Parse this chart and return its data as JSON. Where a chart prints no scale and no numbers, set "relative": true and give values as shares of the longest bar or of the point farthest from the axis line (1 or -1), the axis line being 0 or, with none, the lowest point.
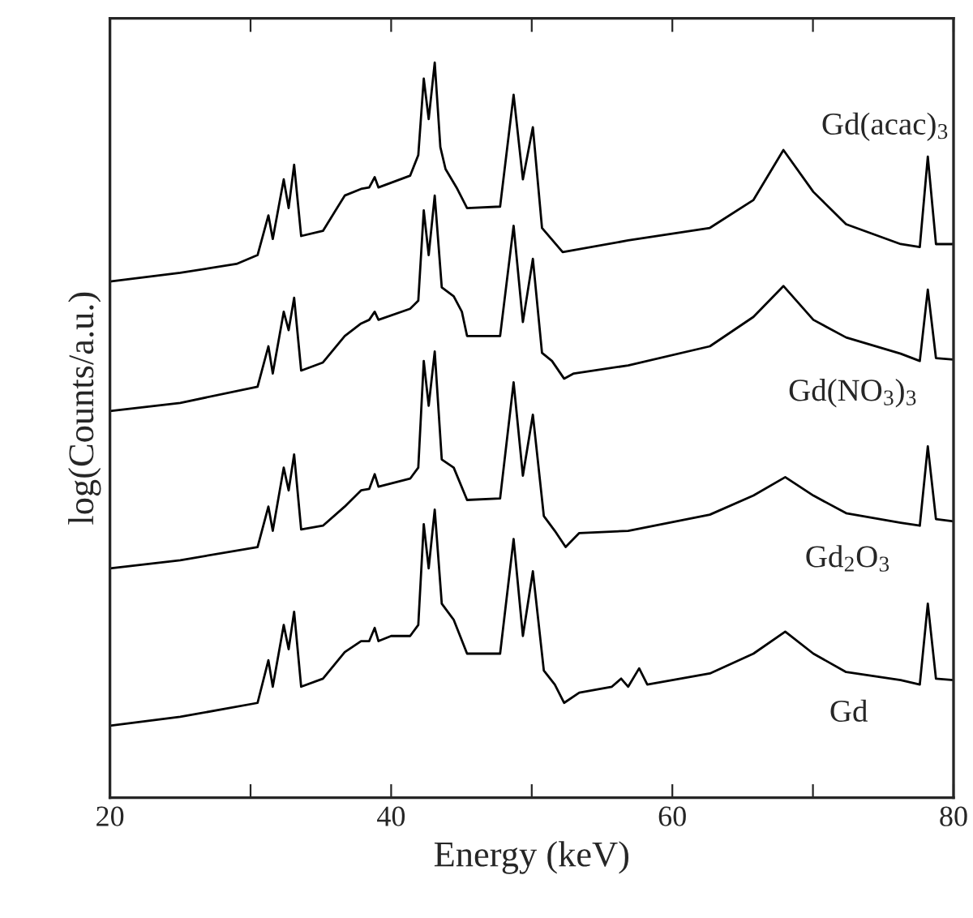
{
  "chart_data": {
    "type": "line",
    "relative": true,
    "xlabel": "Energy (keV)",
    "ylabel": "log(Counts/a.u.)",
    "xlim": [
      20,
      80
    ],
    "xticks": [
      20,
      {
        "value": 30,
        "label": null
      },
      40,
      {
        "value": 50,
        "label": null
      },
      60,
      {
        "value": 70,
        "label": null
      },
      80
    ],
    "series": [
      {
        "name": "Gd(acac)$_{3}$",
        "color": "#000000",
        "x": [
          20,
          25,
          29,
          30.5,
          31.27,
          31.58,
          32.36,
          32.71,
          33.1,
          33.6,
          35.15,
          36.7,
          37.86,
          38.44,
          38.83,
          39.1,
          41.35,
          41.93,
          42.32,
          42.67,
          43.1,
          43.5,
          43.87,
          44.65,
          45.4,
          47.75,
          48.71,
          49.37,
          50.08,
          50.73,
          52.2,
          56.86,
          62.67,
          65.77,
          67.9,
          70.03,
          72.36,
          76.24,
          77.6,
          78.17,
          78.75,
          80
        ],
        "values": [
          0.702,
          0.714,
          0.726,
          0.738,
          0.792,
          0.76,
          0.841,
          0.802,
          0.861,
          0.764,
          0.771,
          0.819,
          0.828,
          0.83,
          0.844,
          0.83,
          0.846,
          0.874,
          0.978,
          0.923,
          1.0,
          0.885,
          0.855,
          0.83,
          0.802,
          0.804,
          0.956,
          0.841,
          0.912,
          0.775,
          0.742,
          0.758,
          0.775,
          0.813,
          0.881,
          0.824,
          0.78,
          0.753,
          0.749,
          0.872,
          0.753,
          0.753
        ]
      },
      {
        "name": "Gd(NO$_{3}$)$_{3}$",
        "color": "#000000",
        "x": [
          20,
          25,
          30.5,
          31.27,
          31.58,
          32.36,
          32.71,
          33.1,
          33.6,
          35.15,
          36.7,
          37.86,
          38.44,
          38.83,
          39.1,
          41.35,
          41.93,
          42.32,
          42.67,
          43.1,
          43.6,
          44.45,
          45.03,
          45.4,
          47.75,
          48.71,
          49.37,
          50.08,
          50.73,
          51.44,
          52.3,
          52.99,
          56.86,
          62.67,
          65.77,
          67.9,
          70.03,
          72.36,
          76.24,
          77.6,
          78.17,
          78.75,
          80
        ],
        "values": [
          0.526,
          0.537,
          0.559,
          0.614,
          0.577,
          0.661,
          0.636,
          0.68,
          0.581,
          0.592,
          0.628,
          0.645,
          0.65,
          0.661,
          0.65,
          0.665,
          0.676,
          0.799,
          0.738,
          0.819,
          0.694,
          0.682,
          0.661,
          0.628,
          0.628,
          0.778,
          0.647,
          0.733,
          0.605,
          0.594,
          0.57,
          0.577,
          0.588,
          0.614,
          0.654,
          0.696,
          0.65,
          0.626,
          0.604,
          0.594,
          0.691,
          0.598,
          0.596
        ]
      },
      {
        "name": "Gd$_{2}$O$_{3}$",
        "color": "#000000",
        "x": [
          20,
          25,
          30.5,
          31.27,
          31.58,
          32.36,
          32.71,
          33.1,
          33.6,
          35.15,
          36.7,
          37.86,
          38.44,
          38.83,
          39.1,
          41.35,
          41.93,
          42.32,
          42.67,
          43.1,
          43.6,
          44.45,
          45.4,
          47.75,
          48.71,
          49.37,
          50.08,
          50.86,
          51.64,
          52.41,
          53.38,
          56.86,
          62.67,
          65.77,
          68.03,
          70.03,
          72.36,
          76.24,
          77.6,
          78.17,
          78.75,
          80
        ],
        "values": [
          0.312,
          0.323,
          0.341,
          0.396,
          0.363,
          0.449,
          0.418,
          0.467,
          0.365,
          0.37,
          0.396,
          0.418,
          0.42,
          0.44,
          0.423,
          0.434,
          0.449,
          0.594,
          0.533,
          0.607,
          0.46,
          0.449,
          0.405,
          0.407,
          0.565,
          0.438,
          0.521,
          0.383,
          0.363,
          0.341,
          0.36,
          0.363,
          0.385,
          0.411,
          0.436,
          0.411,
          0.387,
          0.374,
          0.37,
          0.478,
          0.379,
          0.376
        ]
      },
      {
        "name": "Gd",
        "color": "#000000",
        "x": [
          20,
          25,
          30.5,
          31.27,
          31.58,
          32.36,
          32.71,
          33.1,
          33.6,
          35.15,
          36.7,
          37.86,
          38.44,
          38.83,
          39.1,
          40.0,
          41.35,
          41.93,
          42.32,
          42.67,
          43.1,
          43.6,
          44.45,
          45.4,
          47.75,
          48.71,
          49.37,
          50.08,
          50.86,
          51.64,
          52.3,
          53.38,
          55.7,
          56.36,
          56.86,
          57.64,
          58.22,
          62.67,
          65.77,
          68.03,
          70.03,
          72.36,
          76.24,
          77.6,
          78.17,
          78.75,
          80
        ],
        "values": [
          0.098,
          0.11,
          0.129,
          0.187,
          0.151,
          0.235,
          0.202,
          0.253,
          0.151,
          0.162,
          0.198,
          0.213,
          0.213,
          0.231,
          0.213,
          0.22,
          0.22,
          0.235,
          0.372,
          0.312,
          0.392,
          0.264,
          0.242,
          0.196,
          0.196,
          0.352,
          0.22,
          0.308,
          0.173,
          0.154,
          0.129,
          0.143,
          0.151,
          0.162,
          0.151,
          0.176,
          0.154,
          0.169,
          0.196,
          0.226,
          0.196,
          0.171,
          0.16,
          0.154,
          0.264,
          0.162,
          0.16
        ]
      }
    ]
  }
}
